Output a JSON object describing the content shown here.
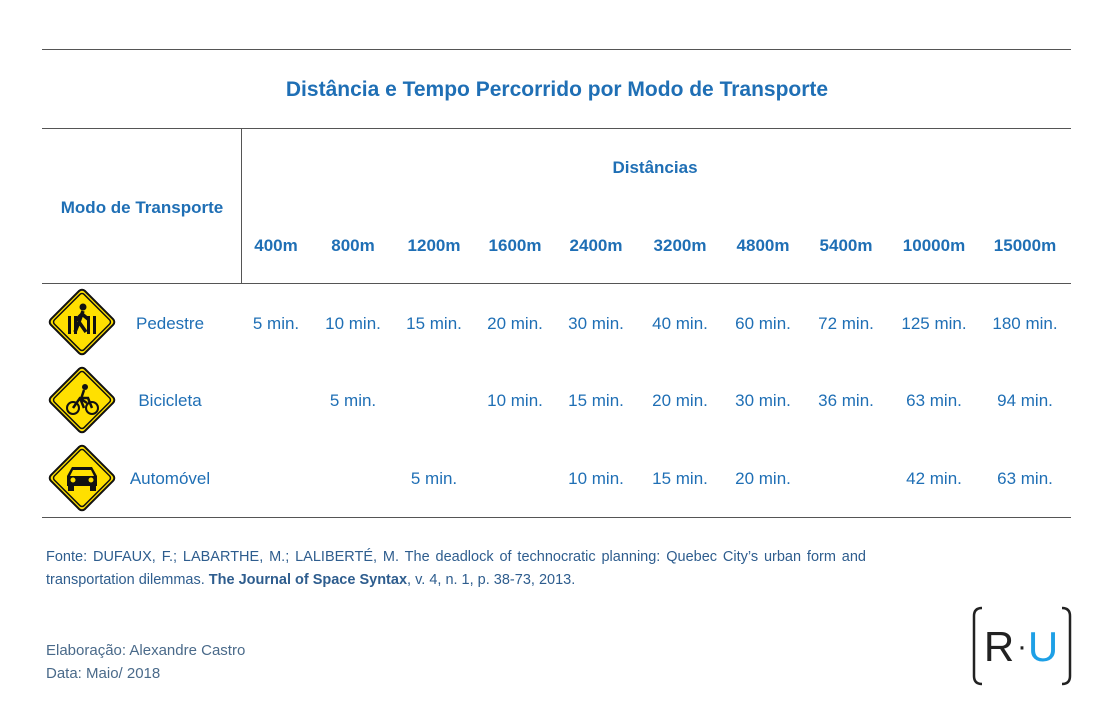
{
  "title": "Distância e Tempo Percorrido por Modo de Transporte",
  "table": {
    "header_label": "Modo de Transporte",
    "group_label": "Distâncias",
    "columns": [
      "400m",
      "800m",
      "1200m",
      "1600m",
      "2400m",
      "3200m",
      "4800m",
      "5400m",
      "10000m",
      "15000m"
    ],
    "rows": [
      {
        "mode": "Pedestre",
        "cells": [
          "5 min.",
          "10 min.",
          "15 min.",
          "20 min.",
          "30 min.",
          "40 min.",
          "60 min.",
          "72 min.",
          "125 min.",
          "180 min."
        ]
      },
      {
        "mode": "Bicicleta",
        "cells": [
          null,
          "5 min.",
          null,
          "10 min.",
          "15 min.",
          "20 min.",
          "30 min.",
          "36 min.",
          "63 min.",
          "94 min."
        ]
      },
      {
        "mode": "Automóvel",
        "cells": [
          null,
          null,
          "5 min.",
          null,
          "10 min.",
          "15 min.",
          "20 min.",
          null,
          "42 min.",
          "63 min."
        ]
      }
    ]
  },
  "source": {
    "text": "Fonte: DUFAUX, F.; LABARTHE, M.; LALIBERTÉ, M. The deadlock of technocratic planning: Quebec City’s urban form and transportation dilemmas.",
    "journal": "The Journal of Space Syntax",
    "details": ", v. 4, n. 1, p. 38-73, 2013."
  },
  "credits": {
    "author": "Elaboração: Alexandre Castro",
    "date": "Data: Maio/ 2018"
  },
  "logo": {
    "left": "R",
    "separator": "·",
    "right": "U"
  }
}
